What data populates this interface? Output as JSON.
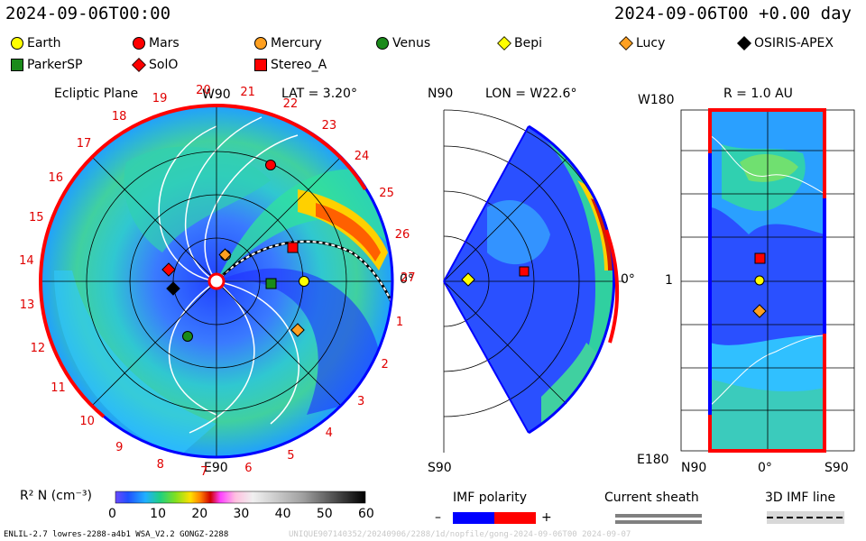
{
  "header": {
    "timestamp": "2024-09-06T00:00",
    "offset": "2024-09-06T00 +0.00 day"
  },
  "legend": [
    {
      "name": "Earth",
      "shape": "circle",
      "color": "#ffff00"
    },
    {
      "name": "Mars",
      "shape": "circle",
      "color": "#ff0000"
    },
    {
      "name": "Mercury",
      "shape": "circle",
      "color": "#ffa020"
    },
    {
      "name": "Venus",
      "shape": "circle",
      "color": "#1a8a1a"
    },
    {
      "name": "Bepi",
      "shape": "diamond",
      "color": "#ffff00"
    },
    {
      "name": "Lucy",
      "shape": "diamond",
      "color": "#ffa020"
    },
    {
      "name": "OSIRIS-APEX",
      "shape": "diamond",
      "color": "#000000"
    },
    {
      "name": "ParkerSP",
      "shape": "square",
      "color": "#1a8a1a"
    },
    {
      "name": "SolO",
      "shape": "diamond",
      "color": "#ff0000"
    },
    {
      "name": "Stereo_A",
      "shape": "square",
      "color": "#ff0000"
    }
  ],
  "panels": {
    "ecliptic": {
      "title": "Ecliptic Plane",
      "lat": "LAT = 3.20°",
      "top": "W90",
      "bottom": "E90",
      "right": "0°"
    },
    "meridian": {
      "lon": "LON = W22.6°",
      "top": "N90",
      "bottom": "S90",
      "right": "0°"
    },
    "radius": {
      "title": "R = 1.0 AU",
      "top": "W180",
      "bottom": "E180",
      "left_axis": "1",
      "x_left": "N90",
      "x_mid": "0°",
      "x_right": "S90"
    }
  },
  "carrington_labels": [
    "20",
    "21",
    "22",
    "23",
    "24",
    "25",
    "26",
    "27",
    "1",
    "2",
    "3",
    "4",
    "5",
    "6",
    "7",
    "8",
    "9",
    "10",
    "11",
    "12",
    "13",
    "14",
    "15",
    "16",
    "17",
    "18",
    "19"
  ],
  "colorbar": {
    "label": "R² N (cm⁻³)",
    "ticks": [
      "0",
      "10",
      "20",
      "30",
      "40",
      "50",
      "60"
    ]
  },
  "imf_polarity": {
    "title": "IMF polarity",
    "minus": "–",
    "plus": "+",
    "neg_color": "#0000ff",
    "pos_color": "#ff0000"
  },
  "current_sheath": {
    "title": "Current sheath"
  },
  "imf_line": {
    "title": "3D IMF line"
  },
  "footer": "ENLIL-2.7 lowres-2288-a4b1 WSA_V2.2 GONGZ-2288",
  "footer_faint": "UNIQUE907140352/20240906/2288/1d/nopfile/gong-2024-09-06T00  2024-09-07"
}
